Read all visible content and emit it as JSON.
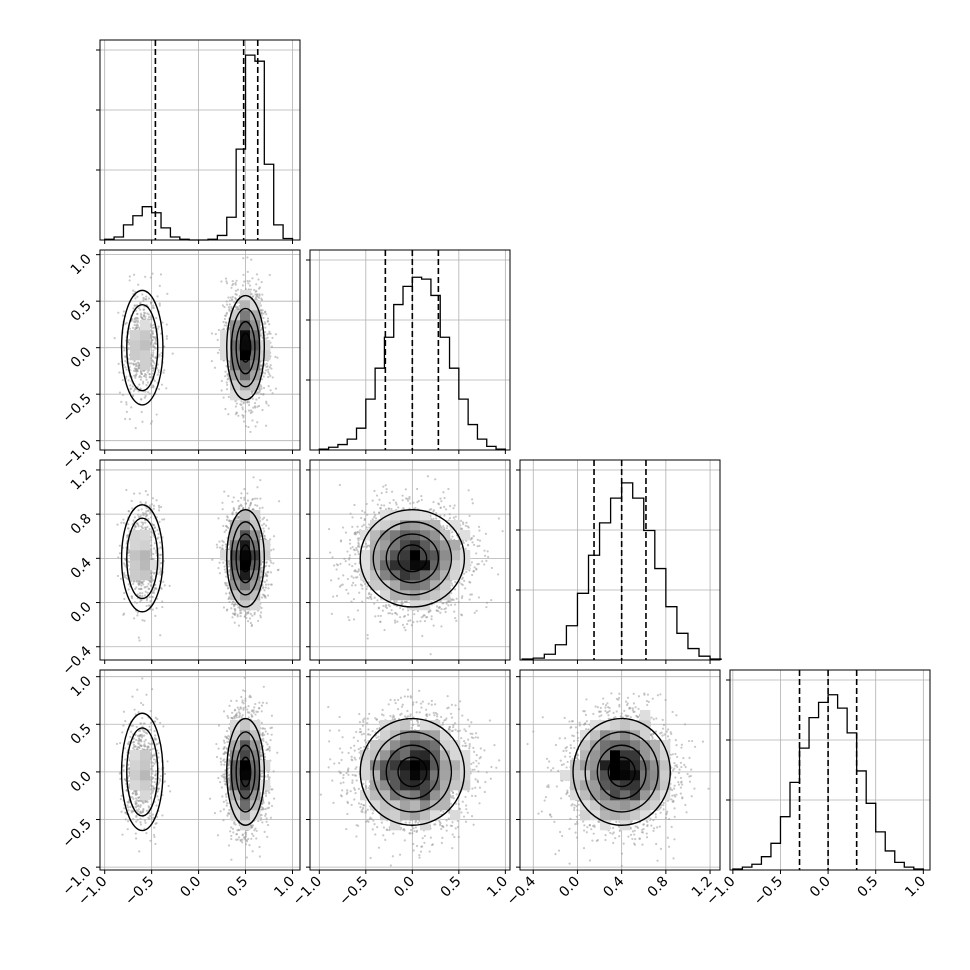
{
  "chart_data": {
    "type": "corner",
    "parameters": [
      {
        "index": 0,
        "ticks": [
          -1.0,
          -0.5,
          0.0,
          0.5,
          1.0
        ],
        "tick_labels": [
          "−1.0",
          "−0.5",
          "0.0",
          "0.5",
          "1.0"
        ],
        "range": [
          -1.05,
          1.08
        ]
      },
      {
        "index": 1,
        "ticks": [
          -1.0,
          -0.5,
          0.0,
          0.5,
          1.0
        ],
        "tick_labels": [
          "−1.0",
          "−0.5",
          "0.0",
          "0.5",
          "1.0"
        ],
        "range": [
          -1.1,
          1.05
        ]
      },
      {
        "index": 2,
        "ticks": [
          -0.4,
          0.0,
          0.4,
          0.8,
          1.2
        ],
        "tick_labels": [
          "−0.4",
          "0.0",
          "0.4",
          "0.8",
          "1.2"
        ],
        "range": [
          -0.52,
          1.29
        ]
      },
      {
        "index": 3,
        "ticks": [
          -1.0,
          -0.5,
          0.0,
          0.5,
          1.0
        ],
        "tick_labels": [
          "−1.0",
          "−0.5",
          "0.0",
          "0.5",
          "1.0"
        ],
        "range": [
          -1.03,
          1.07
        ]
      }
    ],
    "histograms": [
      {
        "param": 0,
        "bin_edges": [
          -1.0,
          -0.9,
          -0.8,
          -0.7,
          -0.6,
          -0.5,
          -0.4,
          -0.3,
          -0.2,
          -0.1,
          0.0,
          0.1,
          0.2,
          0.3,
          0.4,
          0.5,
          0.6,
          0.7,
          0.8,
          0.9,
          1.0
        ],
        "counts": [
          0.5,
          2,
          10,
          16,
          22,
          18,
          8,
          2,
          0.5,
          0,
          0,
          0.5,
          3,
          15,
          60,
          122,
          118,
          50,
          10,
          1
        ],
        "ymax": 132,
        "quantiles": [
          -0.46,
          0.48,
          0.63
        ]
      },
      {
        "param": 1,
        "bin_edges": [
          -1.0,
          -0.9,
          -0.8,
          -0.7,
          -0.6,
          -0.5,
          -0.4,
          -0.3,
          -0.2,
          -0.1,
          0.0,
          0.1,
          0.2,
          0.3,
          0.4,
          0.5,
          0.6,
          0.7,
          0.8,
          0.9,
          1.0
        ],
        "counts": [
          0.5,
          1.5,
          3,
          6,
          12,
          28,
          45,
          62,
          80,
          90,
          95,
          94,
          85,
          62,
          45,
          28,
          14,
          6,
          2,
          0.5
        ],
        "ymax": 110,
        "quantiles": [
          -0.29,
          0.0,
          0.28
        ]
      },
      {
        "param": 2,
        "bin_edges": [
          -0.5,
          -0.4,
          -0.3,
          -0.2,
          -0.1,
          0.0,
          0.1,
          0.2,
          0.3,
          0.4,
          0.5,
          0.6,
          0.7,
          0.8,
          0.9,
          1.0,
          1.1,
          1.2,
          1.3
        ],
        "counts": [
          0.5,
          1,
          3,
          8,
          18,
          35,
          55,
          72,
          85,
          93,
          85,
          68,
          48,
          28,
          14,
          6,
          2,
          0.5
        ],
        "ymax": 105,
        "quantiles": [
          0.15,
          0.4,
          0.62
        ]
      },
      {
        "param": 3,
        "bin_edges": [
          -1.0,
          -0.9,
          -0.8,
          -0.7,
          -0.6,
          -0.5,
          -0.4,
          -0.3,
          -0.2,
          -0.1,
          0.0,
          0.1,
          0.2,
          0.3,
          0.4,
          0.5,
          0.6,
          0.7,
          0.8,
          0.9,
          1.0
        ],
        "counts": [
          0.5,
          1.5,
          3,
          7,
          14,
          28,
          46,
          64,
          80,
          88,
          92,
          85,
          72,
          52,
          35,
          20,
          10,
          4,
          1.5,
          0.5
        ],
        "ymax": 105,
        "quantiles": [
          -0.3,
          0.0,
          0.3
        ]
      }
    ],
    "scatter_panels": [
      {
        "x_param": 0,
        "y_param": 1
      },
      {
        "x_param": 0,
        "y_param": 2
      },
      {
        "x_param": 1,
        "y_param": 2
      },
      {
        "x_param": 0,
        "y_param": 3
      },
      {
        "x_param": 1,
        "y_param": 3
      },
      {
        "x_param": 2,
        "y_param": 3
      }
    ],
    "distributions": [
      {
        "param": 0,
        "components": [
          {
            "weight": 0.2,
            "mean": -0.6,
            "sd": 0.1
          },
          {
            "weight": 0.8,
            "mean": 0.5,
            "sd": 0.1
          }
        ]
      },
      {
        "param": 1,
        "components": [
          {
            "weight": 1.0,
            "mean": 0.0,
            "sd": 0.28
          }
        ]
      },
      {
        "param": 2,
        "components": [
          {
            "weight": 1.0,
            "mean": 0.4,
            "sd": 0.22
          }
        ]
      },
      {
        "param": 3,
        "components": [
          {
            "weight": 1.0,
            "mean": 0.0,
            "sd": 0.28
          }
        ]
      }
    ],
    "grid": true,
    "colors": {
      "ink": "#000000",
      "points": "#9a9a9a",
      "grid": "#b0b0b0"
    }
  }
}
